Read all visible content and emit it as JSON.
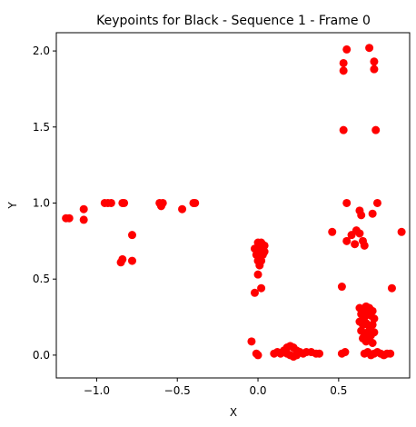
{
  "chart_data": {
    "type": "scatter",
    "title": "Keypoints for Black - Sequence 1 - Frame 0",
    "xlabel": "X",
    "ylabel": "Y",
    "xlim": [
      -1.25,
      0.94
    ],
    "ylim": [
      -0.15,
      2.12
    ],
    "xticks": [
      -1.0,
      -0.5,
      0.0,
      0.5
    ],
    "xtick_labels": [
      "−1.0",
      "−0.5",
      "0.0",
      "0.5"
    ],
    "yticks": [
      0.0,
      0.5,
      1.0,
      1.5,
      2.0
    ],
    "ytick_labels": [
      "0.0",
      "0.5",
      "1.0",
      "1.5",
      "2.0"
    ],
    "grid": false,
    "marker_color": "#ff0000",
    "series": [
      {
        "points": [
          [
            -1.19,
            0.9
          ],
          [
            -1.17,
            0.9
          ],
          [
            -1.08,
            0.96
          ],
          [
            -1.08,
            0.89
          ],
          [
            -0.95,
            1.0
          ],
          [
            -0.93,
            1.0
          ],
          [
            -0.91,
            1.0
          ],
          [
            -0.84,
            1.0
          ],
          [
            -0.83,
            1.0
          ],
          [
            -0.85,
            0.61
          ],
          [
            -0.84,
            0.63
          ],
          [
            -0.78,
            0.79
          ],
          [
            -0.78,
            0.62
          ],
          [
            -0.61,
            1.0
          ],
          [
            -0.6,
            0.98
          ],
          [
            -0.59,
            1.0
          ],
          [
            -0.47,
            0.96
          ],
          [
            -0.4,
            1.0
          ],
          [
            -0.39,
            1.0
          ],
          [
            0.0,
            0.74
          ],
          [
            0.02,
            0.74
          ],
          [
            0.04,
            0.72
          ],
          [
            -0.02,
            0.7
          ],
          [
            0.0,
            0.69
          ],
          [
            0.02,
            0.7
          ],
          [
            0.04,
            0.68
          ],
          [
            -0.01,
            0.66
          ],
          [
            0.01,
            0.65
          ],
          [
            0.03,
            0.66
          ],
          [
            0.0,
            0.62
          ],
          [
            0.02,
            0.62
          ],
          [
            0.01,
            0.59
          ],
          [
            0.0,
            0.53
          ],
          [
            0.02,
            0.44
          ],
          [
            -0.02,
            0.41
          ],
          [
            -0.04,
            0.09
          ],
          [
            -0.01,
            0.01
          ],
          [
            0.0,
            0.0
          ],
          [
            0.1,
            0.01
          ],
          [
            0.12,
            0.02
          ],
          [
            0.14,
            0.01
          ],
          [
            0.16,
            0.03
          ],
          [
            0.18,
            0.05
          ],
          [
            0.2,
            0.06
          ],
          [
            0.22,
            0.05
          ],
          [
            0.24,
            0.03
          ],
          [
            0.26,
            0.02
          ],
          [
            0.28,
            0.01
          ],
          [
            0.2,
            0.0
          ],
          [
            0.22,
            -0.01
          ],
          [
            0.24,
            0.0
          ],
          [
            0.18,
            0.01
          ],
          [
            0.3,
            0.02
          ],
          [
            0.33,
            0.02
          ],
          [
            0.36,
            0.01
          ],
          [
            0.38,
            0.01
          ],
          [
            0.46,
            0.81
          ],
          [
            0.52,
            0.45
          ],
          [
            0.52,
            0.01
          ],
          [
            0.54,
            0.02
          ],
          [
            0.53,
            1.92
          ],
          [
            0.53,
            1.87
          ],
          [
            0.55,
            2.01
          ],
          [
            0.53,
            1.48
          ],
          [
            0.55,
            1.0
          ],
          [
            0.55,
            0.75
          ],
          [
            0.58,
            0.79
          ],
          [
            0.6,
            0.73
          ],
          [
            0.61,
            0.82
          ],
          [
            0.63,
            0.8
          ],
          [
            0.63,
            0.95
          ],
          [
            0.64,
            0.92
          ],
          [
            0.65,
            0.75
          ],
          [
            0.66,
            0.72
          ],
          [
            0.69,
            2.02
          ],
          [
            0.72,
            1.93
          ],
          [
            0.72,
            1.88
          ],
          [
            0.73,
            1.48
          ],
          [
            0.71,
            0.93
          ],
          [
            0.74,
            1.0
          ],
          [
            0.83,
            0.44
          ],
          [
            0.89,
            0.81
          ],
          [
            0.63,
            0.31
          ],
          [
            0.65,
            0.3
          ],
          [
            0.67,
            0.32
          ],
          [
            0.69,
            0.31
          ],
          [
            0.71,
            0.29
          ],
          [
            0.64,
            0.27
          ],
          [
            0.66,
            0.25
          ],
          [
            0.68,
            0.27
          ],
          [
            0.7,
            0.26
          ],
          [
            0.72,
            0.24
          ],
          [
            0.63,
            0.22
          ],
          [
            0.65,
            0.2
          ],
          [
            0.67,
            0.21
          ],
          [
            0.69,
            0.19
          ],
          [
            0.71,
            0.2
          ],
          [
            0.64,
            0.16
          ],
          [
            0.66,
            0.14
          ],
          [
            0.68,
            0.15
          ],
          [
            0.7,
            0.13
          ],
          [
            0.72,
            0.15
          ],
          [
            0.65,
            0.11
          ],
          [
            0.67,
            0.09
          ],
          [
            0.69,
            0.1
          ],
          [
            0.71,
            0.08
          ],
          [
            0.66,
            0.01
          ],
          [
            0.68,
            0.02
          ],
          [
            0.7,
            0.0
          ],
          [
            0.72,
            0.01
          ],
          [
            0.74,
            0.02
          ],
          [
            0.76,
            0.01
          ],
          [
            0.78,
            0.0
          ],
          [
            0.8,
            0.01
          ],
          [
            0.82,
            0.01
          ]
        ]
      }
    ]
  }
}
